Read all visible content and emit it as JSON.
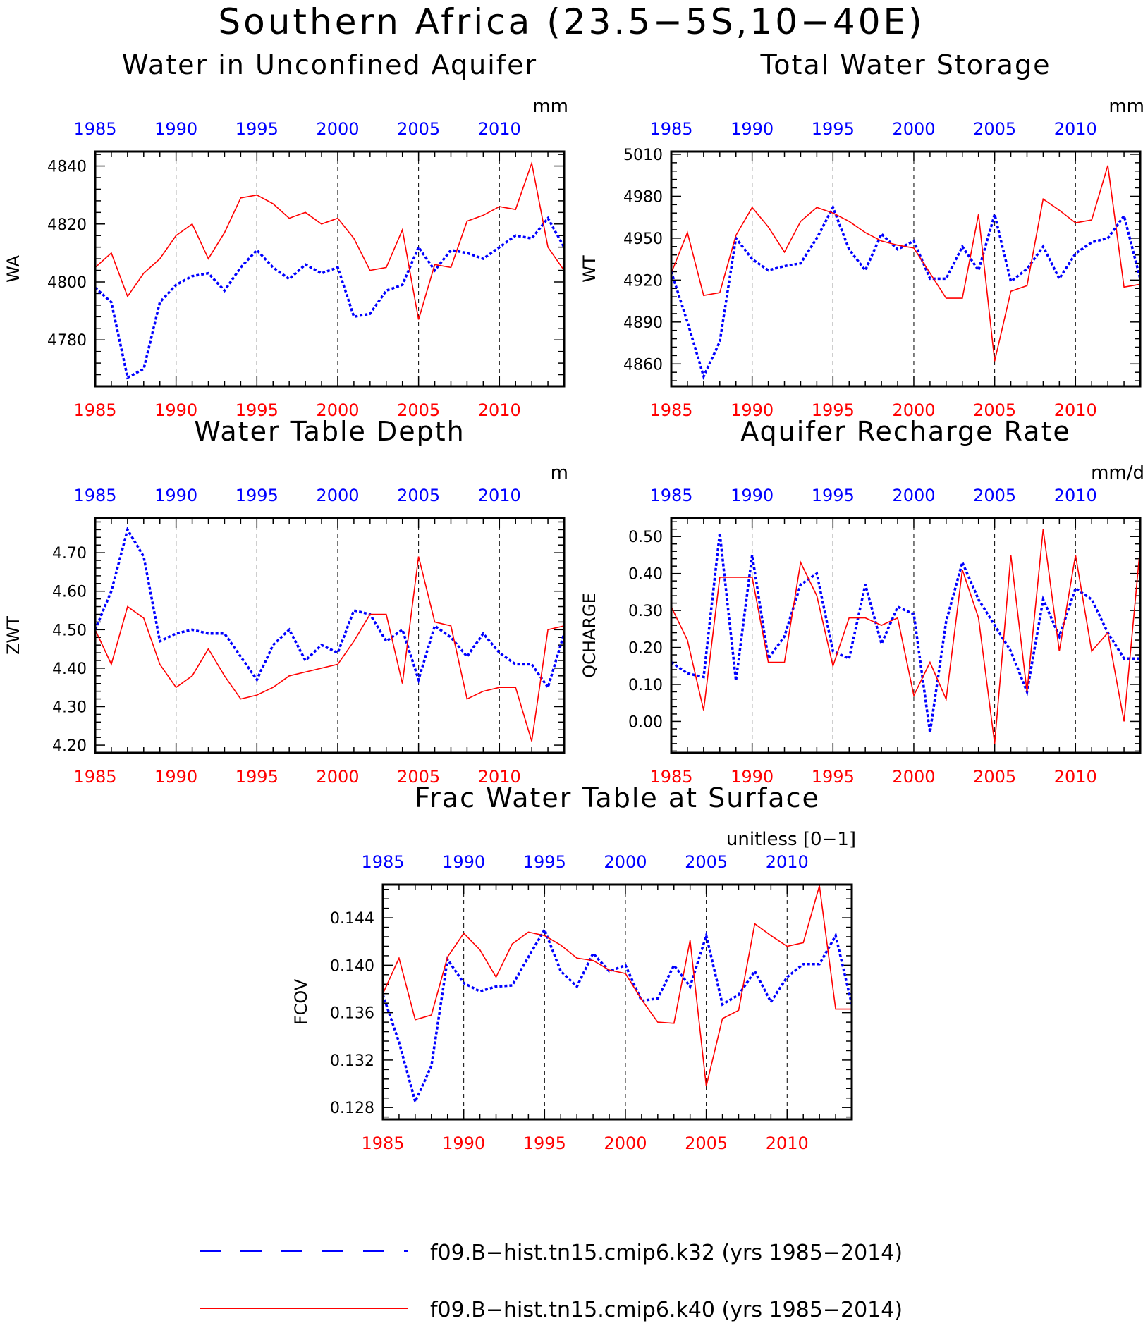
{
  "title": "Southern Africa (23.5−5S,10−40E)",
  "colors": {
    "k32": "#0000ff",
    "k40": "#ff0000",
    "axis": "#000000"
  },
  "legend": [
    {
      "label": "f09.B−hist.tn15.cmip6.k32 (yrs 1985−2014)",
      "color": "#0000ff",
      "style": "dashed"
    },
    {
      "label": "f09.B−hist.tn15.cmip6.k40 (yrs 1985−2014)",
      "color": "#ff0000",
      "style": "solid"
    }
  ],
  "chart_data": [
    {
      "type": "line",
      "title": "Water in Unconfined Aquifer",
      "ylabel": "WA",
      "units": "mm",
      "xlim": [
        1985,
        2014
      ],
      "ylim": [
        4764,
        4845
      ],
      "yticks": [
        4780,
        4800,
        4820,
        4840
      ],
      "ytick_labels": [
        "4780",
        "4800",
        "4820",
        "4840"
      ],
      "xticks": [
        1985,
        1990,
        1995,
        2000,
        2005,
        2010
      ],
      "x": [
        1985,
        1986,
        1987,
        1988,
        1989,
        1990,
        1991,
        1992,
        1993,
        1994,
        1995,
        1996,
        1997,
        1998,
        1999,
        2000,
        2001,
        2002,
        2003,
        2004,
        2005,
        2006,
        2007,
        2008,
        2009,
        2010,
        2011,
        2012,
        2013,
        2014
      ],
      "series": [
        {
          "name": "f09.B−hist.tn15.cmip6.k32",
          "color": "#0000ff",
          "style": "dotted",
          "values": [
            4798,
            4793,
            4767,
            4770,
            4793,
            4799,
            4802,
            4803,
            4797,
            4805,
            4811,
            4805,
            4801,
            4806,
            4803,
            4805,
            4788,
            4789,
            4797,
            4799,
            4812,
            4804,
            4811,
            4810,
            4808,
            4812,
            4816,
            4815,
            4822,
            4812
          ]
        },
        {
          "name": "f09.B−hist.tn15.cmip6.k40",
          "color": "#ff0000",
          "style": "solid",
          "values": [
            4805,
            4810,
            4795,
            4803,
            4808,
            4816,
            4820,
            4808,
            4817,
            4829,
            4830,
            4827,
            4822,
            4824,
            4820,
            4822,
            4815,
            4804,
            4805,
            4818,
            4787,
            4806,
            4805,
            4821,
            4823,
            4826,
            4825,
            4841,
            4812,
            4804
          ]
        }
      ]
    },
    {
      "type": "line",
      "title": "Total Water Storage",
      "ylabel": "WT",
      "units": "mm",
      "xlim": [
        1985,
        2014
      ],
      "ylim": [
        4844,
        5012
      ],
      "yticks": [
        4860,
        4890,
        4920,
        4950,
        4980,
        5010
      ],
      "ytick_labels": [
        "4860",
        "4890",
        "4920",
        "4950",
        "4980",
        "5010"
      ],
      "xticks": [
        1985,
        1990,
        1995,
        2000,
        2005,
        2010
      ],
      "x": [
        1985,
        1986,
        1987,
        1988,
        1989,
        1990,
        1991,
        1992,
        1993,
        1994,
        1995,
        1996,
        1997,
        1998,
        1999,
        2000,
        2001,
        2002,
        2003,
        2004,
        2005,
        2006,
        2007,
        2008,
        2009,
        2010,
        2011,
        2012,
        2013,
        2014
      ],
      "series": [
        {
          "name": "f09.B−hist.tn15.cmip6.k32",
          "color": "#0000ff",
          "style": "dotted",
          "values": [
            4926,
            4890,
            4851,
            4876,
            4950,
            4935,
            4927,
            4930,
            4932,
            4950,
            4972,
            4942,
            4927,
            4953,
            4942,
            4948,
            4921,
            4921,
            4944,
            4927,
            4967,
            4919,
            4928,
            4944,
            4921,
            4939,
            4947,
            4950,
            4966,
            4921
          ]
        },
        {
          "name": "f09.B−hist.tn15.cmip6.k40",
          "color": "#ff0000",
          "style": "solid",
          "values": [
            4925,
            4954,
            4909,
            4911,
            4952,
            4972,
            4958,
            4940,
            4962,
            4972,
            4968,
            4962,
            4954,
            4948,
            4945,
            4943,
            4925,
            4907,
            4907,
            4967,
            4862,
            4912,
            4916,
            4978,
            4970,
            4961,
            4963,
            5002,
            4915,
            4917
          ]
        }
      ]
    },
    {
      "type": "line",
      "title": "Water Table Depth",
      "ylabel": "ZWT",
      "units": "m",
      "xlim": [
        1985,
        2014
      ],
      "ylim": [
        4.18,
        4.79
      ],
      "yticks": [
        4.2,
        4.3,
        4.4,
        4.5,
        4.6,
        4.7
      ],
      "ytick_labels": [
        "4.20",
        "4.30",
        "4.40",
        "4.50",
        "4.60",
        "4.70"
      ],
      "xticks": [
        1985,
        1990,
        1995,
        2000,
        2005,
        2010
      ],
      "x": [
        1985,
        1986,
        1987,
        1988,
        1989,
        1990,
        1991,
        1992,
        1993,
        1994,
        1995,
        1996,
        1997,
        1998,
        1999,
        2000,
        2001,
        2002,
        2003,
        2004,
        2005,
        2006,
        2007,
        2008,
        2009,
        2010,
        2011,
        2012,
        2013,
        2014
      ],
      "series": [
        {
          "name": "f09.B−hist.tn15.cmip6.k32",
          "color": "#0000ff",
          "style": "dotted",
          "values": [
            4.5,
            4.6,
            4.76,
            4.69,
            4.47,
            4.49,
            4.5,
            4.49,
            4.49,
            4.43,
            4.37,
            4.46,
            4.5,
            4.42,
            4.46,
            4.44,
            4.55,
            4.54,
            4.47,
            4.5,
            4.37,
            4.51,
            4.48,
            4.43,
            4.49,
            4.44,
            4.41,
            4.41,
            4.35,
            4.49
          ]
        },
        {
          "name": "f09.B−hist.tn15.cmip6.k40",
          "color": "#ff0000",
          "style": "solid",
          "values": [
            4.5,
            4.41,
            4.56,
            4.53,
            4.41,
            4.35,
            4.38,
            4.45,
            4.38,
            4.32,
            4.33,
            4.35,
            4.38,
            4.39,
            4.4,
            4.41,
            4.47,
            4.54,
            4.54,
            4.36,
            4.69,
            4.52,
            4.51,
            4.32,
            4.34,
            4.35,
            4.35,
            4.21,
            4.5,
            4.51
          ]
        }
      ]
    },
    {
      "type": "line",
      "title": "Aquifer Recharge Rate",
      "ylabel": "QCHARGE",
      "units": "mm/d",
      "xlim": [
        1985,
        2014
      ],
      "ylim": [
        -0.085,
        0.55
      ],
      "yticks": [
        0.0,
        0.1,
        0.2,
        0.3,
        0.4,
        0.5
      ],
      "ytick_labels": [
        "0.00",
        "0.10",
        "0.20",
        "0.30",
        "0.40",
        "0.50"
      ],
      "xticks": [
        1985,
        1990,
        1995,
        2000,
        2005,
        2010
      ],
      "x": [
        1985,
        1986,
        1987,
        1988,
        1989,
        1990,
        1991,
        1992,
        1993,
        1994,
        1995,
        1996,
        1997,
        1998,
        1999,
        2000,
        2001,
        2002,
        2003,
        2004,
        2005,
        2006,
        2007,
        2008,
        2009,
        2010,
        2011,
        2012,
        2013,
        2014
      ],
      "series": [
        {
          "name": "f09.B−hist.tn15.cmip6.k32",
          "color": "#0000ff",
          "style": "dotted",
          "values": [
            0.16,
            0.13,
            0.12,
            0.51,
            0.11,
            0.45,
            0.17,
            0.23,
            0.37,
            0.4,
            0.19,
            0.17,
            0.37,
            0.21,
            0.31,
            0.29,
            -0.03,
            0.27,
            0.43,
            0.33,
            0.26,
            0.19,
            0.08,
            0.33,
            0.23,
            0.36,
            0.33,
            0.24,
            0.17,
            0.17
          ]
        },
        {
          "name": "f09.B−hist.tn15.cmip6.k40",
          "color": "#ff0000",
          "style": "solid",
          "values": [
            0.31,
            0.22,
            0.03,
            0.39,
            0.39,
            0.39,
            0.16,
            0.16,
            0.43,
            0.34,
            0.15,
            0.28,
            0.28,
            0.26,
            0.28,
            0.07,
            0.16,
            0.06,
            0.41,
            0.28,
            -0.06,
            0.45,
            0.08,
            0.52,
            0.19,
            0.45,
            0.19,
            0.24,
            0.0,
            0.47
          ]
        }
      ]
    },
    {
      "type": "line",
      "title": "Frac Water Table at Surface",
      "ylabel": "FCOV",
      "units": "unitless [0−1]",
      "xlim": [
        1985,
        2014
      ],
      "ylim": [
        0.127,
        0.1468
      ],
      "yticks": [
        0.128,
        0.132,
        0.136,
        0.14,
        0.144
      ],
      "ytick_labels": [
        "0.128",
        "0.132",
        "0.136",
        "0.140",
        "0.144"
      ],
      "xticks": [
        1985,
        1990,
        1995,
        2000,
        2005,
        2010
      ],
      "x": [
        1985,
        1986,
        1987,
        1988,
        1989,
        1990,
        1991,
        1992,
        1993,
        1994,
        1995,
        1996,
        1997,
        1998,
        1999,
        2000,
        2001,
        2002,
        2003,
        2004,
        2005,
        2006,
        2007,
        2008,
        2009,
        2010,
        2011,
        2012,
        2013,
        2014
      ],
      "series": [
        {
          "name": "f09.B−hist.tn15.cmip6.k32",
          "color": "#0000ff",
          "style": "dotted",
          "values": [
            0.1375,
            0.1335,
            0.1285,
            0.1315,
            0.1405,
            0.1385,
            0.1378,
            0.1382,
            0.1383,
            0.1407,
            0.143,
            0.1395,
            0.1382,
            0.141,
            0.1395,
            0.14,
            0.137,
            0.1372,
            0.14,
            0.1382,
            0.1425,
            0.1367,
            0.1375,
            0.1395,
            0.1369,
            0.139,
            0.1401,
            0.1401,
            0.1425,
            0.1367
          ]
        },
        {
          "name": "f09.B−hist.tn15.cmip6.k40",
          "color": "#ff0000",
          "style": "solid",
          "values": [
            0.1376,
            0.1406,
            0.1354,
            0.1358,
            0.1407,
            0.1427,
            0.1413,
            0.139,
            0.1418,
            0.1428,
            0.1425,
            0.1417,
            0.1406,
            0.1404,
            0.1396,
            0.1393,
            0.1371,
            0.1352,
            0.1351,
            0.1421,
            0.1298,
            0.1355,
            0.1362,
            0.1435,
            0.1425,
            0.1416,
            0.1419,
            0.1467,
            0.1363,
            0.1363
          ]
        }
      ]
    }
  ]
}
